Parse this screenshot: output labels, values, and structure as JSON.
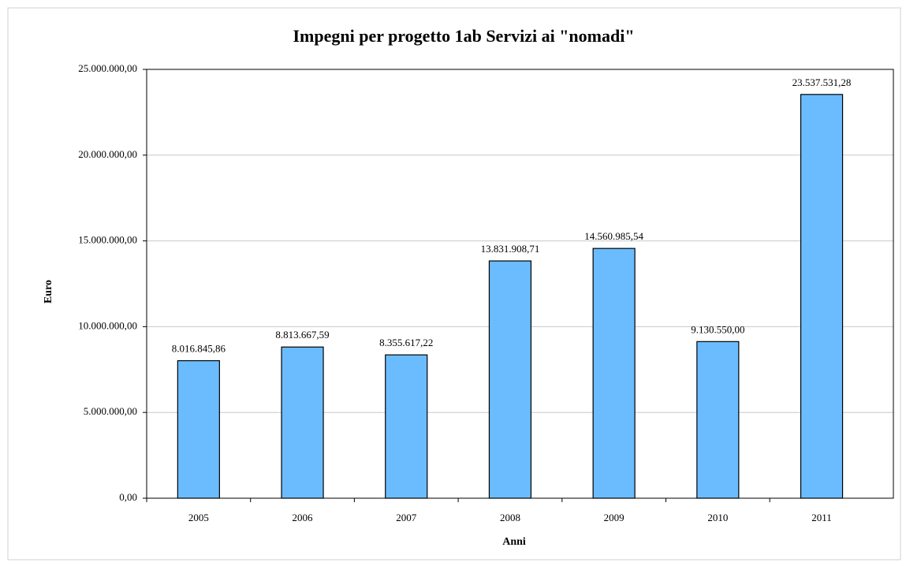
{
  "chart_data": {
    "type": "bar",
    "title": "Impegni per progetto 1ab Servizi ai \"nomadi\"",
    "x_label": "Anni",
    "y_label": "Euro",
    "categories": [
      "2005",
      "2006",
      "2007",
      "2008",
      "2009",
      "2010",
      "2011"
    ],
    "values": [
      8016845.86,
      8813667.59,
      8355617.22,
      13831908.71,
      14560985.54,
      9130550.0,
      23537531.28
    ],
    "value_labels": [
      "8.016.845,86",
      "8.813.667,59",
      "8.355.617,22",
      "13.831.908,71",
      "14.560.985,54",
      "9.130.550,00",
      "23.537.531,28"
    ],
    "color": "#6bbcff",
    "ylim": [
      0,
      25000000
    ],
    "yticks": [
      {
        "value": 0,
        "label": "0,00"
      },
      {
        "value": 5000000,
        "label": "5.000.000,00"
      },
      {
        "value": 10000000,
        "label": "10.000.000,00"
      },
      {
        "value": 15000000,
        "label": "15.000.000,00"
      },
      {
        "value": 20000000,
        "label": "20.000.000,00"
      },
      {
        "value": 25000000,
        "label": "25.000.000,00"
      }
    ],
    "grid": true
  }
}
